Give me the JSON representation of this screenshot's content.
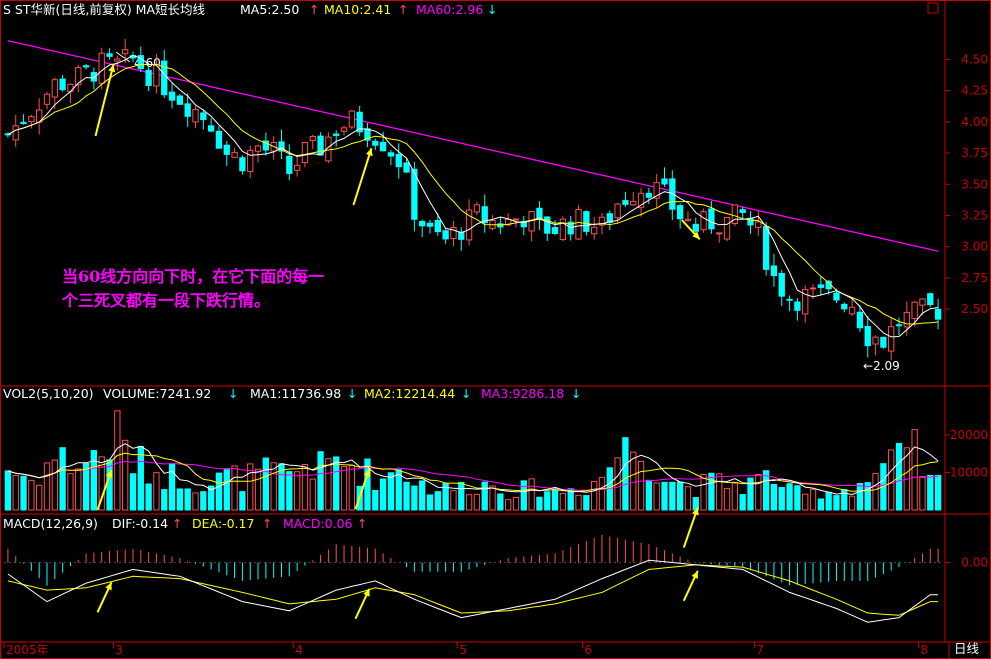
{
  "colors": {
    "up": "#ff4d4d",
    "down": "#00ffff",
    "ma5": "#ffffff",
    "ma10": "#ffff00",
    "ma60": "#ff00ff",
    "axis": "#c80000",
    "label": "#ffffff",
    "annotation": "#ff00ff",
    "arrow": "#ffff00"
  },
  "header": {
    "title": "S ST华新(日线,前复权) MA短长均线",
    "ma5": "MA5:2.50",
    "ma5_arrow": "↑",
    "ma10": "MA10:2.41",
    "ma10_arrow": "↑",
    "ma60": "MA60:2.96",
    "ma60_arrow": "↓"
  },
  "volume_header": {
    "name": "VOL2(5,10,20)",
    "volume": "VOLUME:7241.92",
    "volume_arrow": "↓",
    "ma1": "MA1:11736.98",
    "ma1_arrow": "↓",
    "ma2": "MA2:12214.44",
    "ma2_arrow": "↓",
    "ma3": "MA3:9286.18",
    "ma3_arrow": "↓"
  },
  "macd_header": {
    "name": "MACD(12,26,9)",
    "dif": "DIF:-0.14",
    "dif_arrow": "↑",
    "dea": "DEA:-0.17",
    "dea_arrow": "↑",
    "macd": "MACD:0.06",
    "macd_arrow": "↑"
  },
  "annotation": {
    "line1": "当60线方向向下时，在它下面的每一",
    "line2": "个三死叉都有一段下跌行情。"
  },
  "markers": {
    "high": "4.60",
    "low": "←2.09"
  },
  "footer": {
    "period_label": "日线"
  },
  "chart_data": {
    "type": "candlestick",
    "price_axis": {
      "ylim": [
        1.9,
        4.8
      ],
      "ticks": [
        "4.50",
        "4.25",
        "4.00",
        "3.75",
        "3.50",
        "3.25",
        "3.00",
        "2.75",
        "2.50"
      ],
      "tick_values": [
        4.5,
        4.25,
        4.0,
        3.75,
        3.5,
        3.25,
        3.0,
        2.75,
        2.5
      ]
    },
    "volume_axis": {
      "ylim": [
        0,
        28000
      ],
      "ticks": [
        "20000",
        "10000"
      ],
      "tick_values": [
        20000,
        10000
      ]
    },
    "macd_axis": {
      "ylim": [
        -0.32,
        0.12
      ],
      "ticks": [
        "0.00"
      ],
      "tick_values": [
        0
      ]
    },
    "x_axis": {
      "labels": [
        "2005年",
        "3",
        "4",
        "5",
        "6",
        "7",
        "8"
      ],
      "label_index": [
        0,
        14,
        37,
        58,
        74,
        96,
        117
      ]
    },
    "anchors": {
      "close": [
        [
          0,
          3.9
        ],
        [
          3,
          4.1
        ],
        [
          6,
          4.3
        ],
        [
          9,
          4.35
        ],
        [
          12,
          4.45
        ],
        [
          14,
          4.45
        ],
        [
          16,
          4.5
        ],
        [
          18,
          4.4
        ],
        [
          20,
          4.3
        ],
        [
          22,
          4.2
        ],
        [
          24,
          4.1
        ],
        [
          26,
          4.0
        ],
        [
          28,
          3.75
        ],
        [
          30,
          3.7
        ],
        [
          32,
          3.8
        ],
        [
          34,
          3.75
        ],
        [
          36,
          3.6
        ],
        [
          38,
          3.75
        ],
        [
          40,
          3.8
        ],
        [
          42,
          3.95
        ],
        [
          44,
          4.0
        ],
        [
          46,
          3.95
        ],
        [
          48,
          3.85
        ],
        [
          50,
          3.7
        ],
        [
          52,
          3.3
        ],
        [
          54,
          3.1
        ],
        [
          56,
          3.05
        ],
        [
          58,
          3.15
        ],
        [
          60,
          3.25
        ],
        [
          62,
          3.2
        ],
        [
          64,
          3.2
        ],
        [
          66,
          3.25
        ],
        [
          68,
          3.15
        ],
        [
          70,
          3.15
        ],
        [
          72,
          3.2
        ],
        [
          74,
          3.2
        ],
        [
          76,
          3.15
        ],
        [
          78,
          3.35
        ],
        [
          80,
          3.45
        ],
        [
          82,
          3.5
        ],
        [
          84,
          3.4
        ],
        [
          86,
          3.25
        ],
        [
          88,
          3.15
        ],
        [
          90,
          3.2
        ],
        [
          92,
          3.2
        ],
        [
          94,
          3.25
        ],
        [
          96,
          3.1
        ],
        [
          98,
          2.75
        ],
        [
          100,
          2.6
        ],
        [
          102,
          2.6
        ],
        [
          104,
          2.6
        ],
        [
          106,
          2.6
        ],
        [
          108,
          2.55
        ],
        [
          110,
          2.3
        ],
        [
          112,
          2.25
        ],
        [
          114,
          2.4
        ],
        [
          116,
          2.45
        ],
        [
          118,
          2.5
        ]
      ],
      "vol": [
        [
          0,
          11000
        ],
        [
          3,
          8000
        ],
        [
          6,
          14000
        ],
        [
          9,
          12000
        ],
        [
          12,
          15000
        ],
        [
          14,
          20000
        ],
        [
          16,
          13000
        ],
        [
          18,
          11000
        ],
        [
          20,
          9500
        ],
        [
          22,
          9000
        ],
        [
          24,
          7500
        ],
        [
          26,
          7000
        ],
        [
          28,
          9000
        ],
        [
          30,
          8500
        ],
        [
          32,
          9500
        ],
        [
          34,
          10000
        ],
        [
          36,
          9000
        ],
        [
          38,
          12500
        ],
        [
          40,
          11000
        ],
        [
          42,
          13000
        ],
        [
          44,
          12000
        ],
        [
          46,
          10000
        ],
        [
          48,
          8000
        ],
        [
          50,
          12000
        ],
        [
          52,
          8000
        ],
        [
          54,
          6000
        ],
        [
          56,
          5500
        ],
        [
          58,
          6000
        ],
        [
          60,
          7000
        ],
        [
          62,
          6500
        ],
        [
          64,
          5000
        ],
        [
          66,
          5500
        ],
        [
          68,
          6000
        ],
        [
          70,
          5000
        ],
        [
          72,
          5500
        ],
        [
          74,
          6000
        ],
        [
          76,
          9000
        ],
        [
          78,
          15000
        ],
        [
          80,
          17000
        ],
        [
          82,
          14000
        ],
        [
          84,
          9000
        ],
        [
          86,
          7000
        ],
        [
          88,
          6000
        ],
        [
          90,
          7500
        ],
        [
          92,
          7000
        ],
        [
          94,
          6500
        ],
        [
          96,
          8000
        ],
        [
          98,
          9000
        ],
        [
          100,
          5000
        ],
        [
          102,
          4000
        ],
        [
          104,
          5000
        ],
        [
          106,
          5000
        ],
        [
          108,
          6000
        ],
        [
          110,
          8000
        ],
        [
          112,
          11000
        ],
        [
          114,
          13000
        ],
        [
          116,
          15000
        ],
        [
          118,
          7242
        ]
      ],
      "dif": [
        [
          0,
          -0.05
        ],
        [
          5,
          -0.17
        ],
        [
          10,
          -0.09
        ],
        [
          16,
          -0.03
        ],
        [
          22,
          -0.06
        ],
        [
          30,
          -0.17
        ],
        [
          36,
          -0.21
        ],
        [
          42,
          -0.12
        ],
        [
          47,
          -0.08
        ],
        [
          52,
          -0.16
        ],
        [
          58,
          -0.24
        ],
        [
          64,
          -0.2
        ],
        [
          70,
          -0.16
        ],
        [
          76,
          -0.07
        ],
        [
          82,
          0.01
        ],
        [
          88,
          -0.01
        ],
        [
          94,
          -0.03
        ],
        [
          100,
          -0.13
        ],
        [
          106,
          -0.2
        ],
        [
          110,
          -0.26
        ],
        [
          114,
          -0.24
        ],
        [
          118,
          -0.14
        ]
      ],
      "dea": [
        [
          0,
          -0.08
        ],
        [
          5,
          -0.12
        ],
        [
          10,
          -0.11
        ],
        [
          16,
          -0.06
        ],
        [
          22,
          -0.07
        ],
        [
          30,
          -0.13
        ],
        [
          36,
          -0.18
        ],
        [
          42,
          -0.16
        ],
        [
          47,
          -0.11
        ],
        [
          52,
          -0.14
        ],
        [
          58,
          -0.22
        ],
        [
          64,
          -0.21
        ],
        [
          70,
          -0.18
        ],
        [
          76,
          -0.13
        ],
        [
          82,
          -0.03
        ],
        [
          88,
          -0.01
        ],
        [
          94,
          -0.02
        ],
        [
          100,
          -0.08
        ],
        [
          106,
          -0.16
        ],
        [
          110,
          -0.22
        ],
        [
          114,
          -0.23
        ],
        [
          118,
          -0.17
        ]
      ]
    },
    "points_count": 120
  }
}
